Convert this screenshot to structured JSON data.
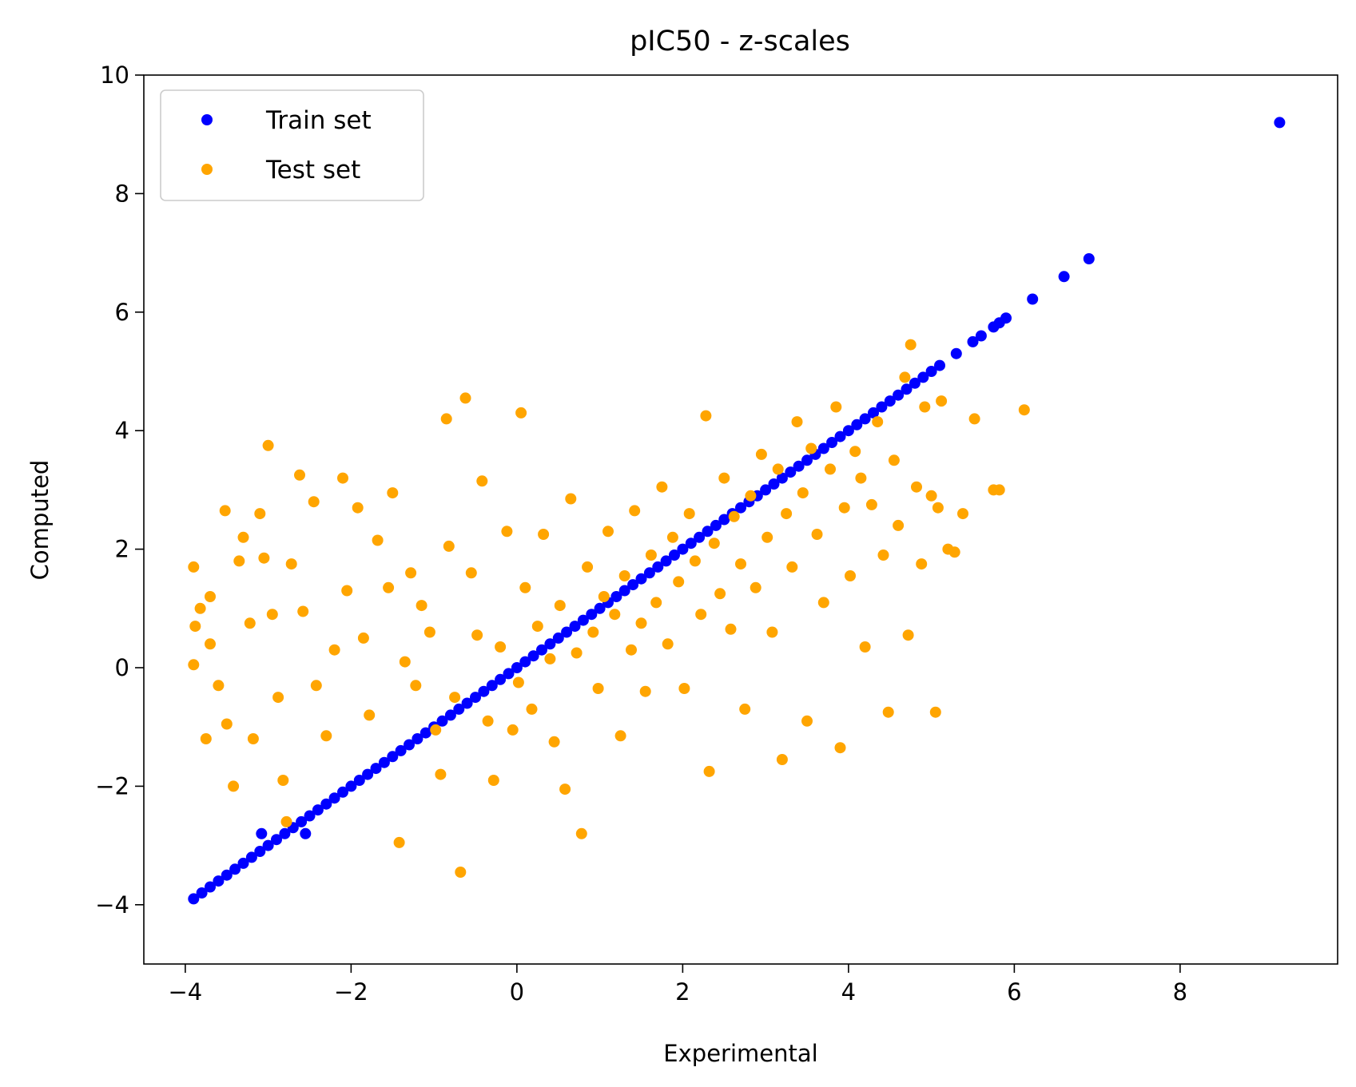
{
  "chart_data": {
    "type": "scatter",
    "title": "pIC50 - z-scales",
    "xlabel": "Experimental",
    "ylabel": "Computed",
    "xlim": [
      -4.5,
      9.9
    ],
    "ylim": [
      -5,
      10
    ],
    "xticks": [
      -4,
      -2,
      0,
      2,
      4,
      6,
      8
    ],
    "xtick_labels": [
      "−4",
      "−2",
      "0",
      "2",
      "4",
      "6",
      "8"
    ],
    "yticks": [
      -4,
      -2,
      0,
      2,
      4,
      6,
      8,
      10
    ],
    "ytick_labels": [
      "−4",
      "−2",
      "0",
      "2",
      "4",
      "6",
      "8",
      "10"
    ],
    "grid": false,
    "legend_position": "upper-left",
    "series": [
      {
        "name": "Train set",
        "color": "#0000ff",
        "points": [
          [
            -3.9,
            -3.9
          ],
          [
            -3.8,
            -3.8
          ],
          [
            -3.7,
            -3.7
          ],
          [
            -3.6,
            -3.6
          ],
          [
            -3.5,
            -3.5
          ],
          [
            -3.4,
            -3.4
          ],
          [
            -3.3,
            -3.3
          ],
          [
            -3.2,
            -3.2
          ],
          [
            -3.1,
            -3.1
          ],
          [
            -3.0,
            -3.0
          ],
          [
            -3.08,
            -2.8
          ],
          [
            -2.9,
            -2.9
          ],
          [
            -2.8,
            -2.8
          ],
          [
            -2.7,
            -2.7
          ],
          [
            -2.6,
            -2.6
          ],
          [
            -2.5,
            -2.5
          ],
          [
            -2.55,
            -2.8
          ],
          [
            -2.4,
            -2.4
          ],
          [
            -2.3,
            -2.3
          ],
          [
            -2.2,
            -2.2
          ],
          [
            -2.1,
            -2.1
          ],
          [
            -2.0,
            -2.0
          ],
          [
            -1.9,
            -1.9
          ],
          [
            -1.8,
            -1.8
          ],
          [
            -1.7,
            -1.7
          ],
          [
            -1.6,
            -1.6
          ],
          [
            -1.5,
            -1.5
          ],
          [
            -1.4,
            -1.4
          ],
          [
            -1.3,
            -1.3
          ],
          [
            -1.2,
            -1.2
          ],
          [
            -1.1,
            -1.1
          ],
          [
            -1.0,
            -1.0
          ],
          [
            -0.9,
            -0.9
          ],
          [
            -0.8,
            -0.8
          ],
          [
            -0.7,
            -0.7
          ],
          [
            -0.6,
            -0.6
          ],
          [
            -0.5,
            -0.5
          ],
          [
            -0.4,
            -0.4
          ],
          [
            -0.3,
            -0.3
          ],
          [
            -0.2,
            -0.2
          ],
          [
            -0.1,
            -0.1
          ],
          [
            0.0,
            0.0
          ],
          [
            0.1,
            0.1
          ],
          [
            0.2,
            0.2
          ],
          [
            0.3,
            0.3
          ],
          [
            0.4,
            0.4
          ],
          [
            0.5,
            0.5
          ],
          [
            0.6,
            0.6
          ],
          [
            0.7,
            0.7
          ],
          [
            0.8,
            0.8
          ],
          [
            0.9,
            0.9
          ],
          [
            1.0,
            1.0
          ],
          [
            1.1,
            1.1
          ],
          [
            1.2,
            1.2
          ],
          [
            1.3,
            1.3
          ],
          [
            1.4,
            1.4
          ],
          [
            1.5,
            1.5
          ],
          [
            1.6,
            1.6
          ],
          [
            1.7,
            1.7
          ],
          [
            1.8,
            1.8
          ],
          [
            1.9,
            1.9
          ],
          [
            2.0,
            2.0
          ],
          [
            2.1,
            2.1
          ],
          [
            2.2,
            2.2
          ],
          [
            2.3,
            2.3
          ],
          [
            2.4,
            2.4
          ],
          [
            2.5,
            2.5
          ],
          [
            2.6,
            2.6
          ],
          [
            2.7,
            2.7
          ],
          [
            2.8,
            2.8
          ],
          [
            2.9,
            2.9
          ],
          [
            3.0,
            3.0
          ],
          [
            3.1,
            3.1
          ],
          [
            3.2,
            3.2
          ],
          [
            3.3,
            3.3
          ],
          [
            3.4,
            3.4
          ],
          [
            3.5,
            3.5
          ],
          [
            3.6,
            3.6
          ],
          [
            3.7,
            3.7
          ],
          [
            3.8,
            3.8
          ],
          [
            3.9,
            3.9
          ],
          [
            4.0,
            4.0
          ],
          [
            4.1,
            4.1
          ],
          [
            4.2,
            4.2
          ],
          [
            4.3,
            4.3
          ],
          [
            4.4,
            4.4
          ],
          [
            4.5,
            4.5
          ],
          [
            4.6,
            4.6
          ],
          [
            4.7,
            4.7
          ],
          [
            4.8,
            4.8
          ],
          [
            4.9,
            4.9
          ],
          [
            5.0,
            5.0
          ],
          [
            5.1,
            5.1
          ],
          [
            5.3,
            5.3
          ],
          [
            5.5,
            5.5
          ],
          [
            5.6,
            5.6
          ],
          [
            5.75,
            5.75
          ],
          [
            5.82,
            5.82
          ],
          [
            5.9,
            5.9
          ],
          [
            6.22,
            6.22
          ],
          [
            6.6,
            6.6
          ],
          [
            6.9,
            6.9
          ],
          [
            9.2,
            9.2
          ]
        ]
      },
      {
        "name": "Test set",
        "color": "#ffa500",
        "points": [
          [
            -3.9,
            1.7
          ],
          [
            -3.9,
            0.05
          ],
          [
            -3.88,
            0.7
          ],
          [
            -3.82,
            1.0
          ],
          [
            -3.75,
            -1.2
          ],
          [
            -3.7,
            1.2
          ],
          [
            -3.7,
            0.4
          ],
          [
            -3.6,
            -0.3
          ],
          [
            -3.52,
            2.65
          ],
          [
            -3.5,
            -0.95
          ],
          [
            -3.42,
            -2.0
          ],
          [
            -3.35,
            1.8
          ],
          [
            -3.3,
            2.2
          ],
          [
            -3.22,
            0.75
          ],
          [
            -3.18,
            -1.2
          ],
          [
            -3.1,
            2.6
          ],
          [
            -3.05,
            1.85
          ],
          [
            -3.0,
            3.75
          ],
          [
            -2.95,
            0.9
          ],
          [
            -2.88,
            -0.5
          ],
          [
            -2.82,
            -1.9
          ],
          [
            -2.78,
            -2.6
          ],
          [
            -2.72,
            1.75
          ],
          [
            -2.62,
            3.25
          ],
          [
            -2.58,
            0.95
          ],
          [
            -2.45,
            2.8
          ],
          [
            -2.42,
            -0.3
          ],
          [
            -2.3,
            -1.15
          ],
          [
            -2.2,
            0.3
          ],
          [
            -2.1,
            3.2
          ],
          [
            -2.05,
            1.3
          ],
          [
            -1.92,
            2.7
          ],
          [
            -1.85,
            0.5
          ],
          [
            -1.78,
            -0.8
          ],
          [
            -1.68,
            2.15
          ],
          [
            -1.55,
            1.35
          ],
          [
            -1.5,
            2.95
          ],
          [
            -1.42,
            -2.95
          ],
          [
            -1.35,
            0.1
          ],
          [
            -1.28,
            1.6
          ],
          [
            -1.22,
            -0.3
          ],
          [
            -1.15,
            1.05
          ],
          [
            -1.05,
            0.6
          ],
          [
            -0.98,
            -1.05
          ],
          [
            -0.92,
            -1.8
          ],
          [
            -0.85,
            4.2
          ],
          [
            -0.82,
            2.05
          ],
          [
            -0.75,
            -0.5
          ],
          [
            -0.68,
            -3.45
          ],
          [
            -0.62,
            4.55
          ],
          [
            -0.55,
            1.6
          ],
          [
            -0.48,
            0.55
          ],
          [
            -0.42,
            3.15
          ],
          [
            -0.35,
            -0.9
          ],
          [
            -0.28,
            -1.9
          ],
          [
            -0.2,
            0.35
          ],
          [
            -0.12,
            2.3
          ],
          [
            -0.05,
            -1.05
          ],
          [
            0.02,
            -0.25
          ],
          [
            0.05,
            4.3
          ],
          [
            0.1,
            1.35
          ],
          [
            0.18,
            -0.7
          ],
          [
            0.25,
            0.7
          ],
          [
            0.32,
            2.25
          ],
          [
            0.4,
            0.15
          ],
          [
            0.45,
            -1.25
          ],
          [
            0.52,
            1.05
          ],
          [
            0.58,
            -2.05
          ],
          [
            0.65,
            2.85
          ],
          [
            0.72,
            0.25
          ],
          [
            0.78,
            -2.8
          ],
          [
            0.85,
            1.7
          ],
          [
            0.92,
            0.6
          ],
          [
            0.98,
            -0.35
          ],
          [
            1.05,
            1.2
          ],
          [
            1.1,
            2.3
          ],
          [
            1.18,
            0.9
          ],
          [
            1.25,
            -1.15
          ],
          [
            1.3,
            1.55
          ],
          [
            1.38,
            0.3
          ],
          [
            1.42,
            2.65
          ],
          [
            1.5,
            0.75
          ],
          [
            1.55,
            -0.4
          ],
          [
            1.62,
            1.9
          ],
          [
            1.68,
            1.1
          ],
          [
            1.75,
            3.05
          ],
          [
            1.82,
            0.4
          ],
          [
            1.88,
            2.2
          ],
          [
            1.95,
            1.45
          ],
          [
            2.02,
            -0.35
          ],
          [
            2.08,
            2.6
          ],
          [
            2.15,
            1.8
          ],
          [
            2.22,
            0.9
          ],
          [
            2.28,
            4.25
          ],
          [
            2.32,
            -1.75
          ],
          [
            2.38,
            2.1
          ],
          [
            2.45,
            1.25
          ],
          [
            2.5,
            3.2
          ],
          [
            2.58,
            0.65
          ],
          [
            2.62,
            2.55
          ],
          [
            2.7,
            1.75
          ],
          [
            2.75,
            -0.7
          ],
          [
            2.82,
            2.9
          ],
          [
            2.88,
            1.35
          ],
          [
            2.95,
            3.6
          ],
          [
            3.02,
            2.2
          ],
          [
            3.08,
            0.6
          ],
          [
            3.15,
            3.35
          ],
          [
            3.2,
            -1.55
          ],
          [
            3.25,
            2.6
          ],
          [
            3.32,
            1.7
          ],
          [
            3.38,
            4.15
          ],
          [
            3.45,
            2.95
          ],
          [
            3.5,
            -0.9
          ],
          [
            3.55,
            3.7
          ],
          [
            3.62,
            2.25
          ],
          [
            3.7,
            1.1
          ],
          [
            3.78,
            3.35
          ],
          [
            3.85,
            4.4
          ],
          [
            3.9,
            -1.35
          ],
          [
            3.95,
            2.7
          ],
          [
            4.02,
            1.55
          ],
          [
            4.08,
            3.65
          ],
          [
            4.15,
            3.2
          ],
          [
            4.2,
            0.35
          ],
          [
            4.28,
            2.75
          ],
          [
            4.35,
            4.15
          ],
          [
            4.42,
            1.9
          ],
          [
            4.48,
            -0.75
          ],
          [
            4.55,
            3.5
          ],
          [
            4.6,
            2.4
          ],
          [
            4.68,
            4.9
          ],
          [
            4.72,
            0.55
          ],
          [
            4.75,
            5.45
          ],
          [
            4.82,
            3.05
          ],
          [
            4.88,
            1.75
          ],
          [
            4.92,
            4.4
          ],
          [
            5.0,
            2.9
          ],
          [
            5.05,
            -0.75
          ],
          [
            5.08,
            2.7
          ],
          [
            5.12,
            4.5
          ],
          [
            5.2,
            2.0
          ],
          [
            5.28,
            1.95
          ],
          [
            5.38,
            2.6
          ],
          [
            5.52,
            4.2
          ],
          [
            5.75,
            3.0
          ],
          [
            5.82,
            3.0
          ],
          [
            6.12,
            4.35
          ]
        ]
      }
    ]
  }
}
